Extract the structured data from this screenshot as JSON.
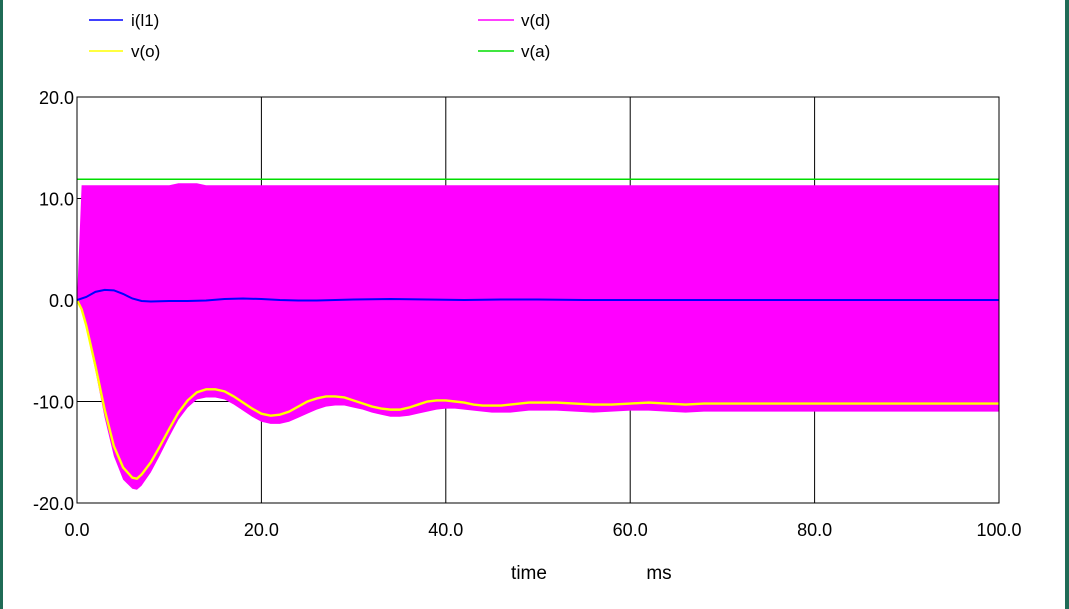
{
  "chart_data": {
    "type": "line",
    "title": "",
    "xlabel": "time",
    "xunit": "ms",
    "ylabel": "",
    "xlim": [
      0,
      100
    ],
    "ylim": [
      -20,
      20
    ],
    "x_ticks": [
      "0.0",
      "20.0",
      "40.0",
      "60.0",
      "80.0",
      "100.0"
    ],
    "y_ticks": [
      "20.0",
      "10.0",
      "0.0",
      "-10.0",
      "-20.0"
    ],
    "grid": true,
    "legend_position": "top",
    "legend": [
      {
        "name": "i(l1)",
        "color": "#0000ff"
      },
      {
        "name": "v(d)",
        "color": "#ff00ff"
      },
      {
        "name": "v(o)",
        "color": "#ffff00"
      },
      {
        "name": "v(a)",
        "color": "#00dd00"
      }
    ],
    "series": [
      {
        "name": "v(d)",
        "color": "#ff00ff",
        "style": "band",
        "x": [
          0,
          0.5,
          1,
          2,
          3,
          4,
          5,
          6,
          6.5,
          7,
          8,
          9,
          10,
          11,
          12,
          13,
          14,
          15,
          16,
          17,
          18,
          19,
          20,
          21,
          22,
          23,
          24,
          25,
          26,
          27,
          28,
          29,
          30,
          31,
          32,
          33,
          34,
          35,
          36,
          37,
          38,
          39,
          40,
          41,
          42,
          43,
          44,
          45,
          46,
          47,
          48,
          49,
          50,
          52,
          54,
          56,
          58,
          60,
          62,
          64,
          66,
          68,
          70,
          72,
          74,
          76,
          78,
          80,
          84,
          88,
          92,
          96,
          100
        ],
        "upper": [
          0,
          11.3,
          11.3,
          11.3,
          11.3,
          11.3,
          11.3,
          11.3,
          11.3,
          11.3,
          11.3,
          11.3,
          11.3,
          11.5,
          11.5,
          11.5,
          11.3,
          11.3,
          11.3,
          11.3,
          11.3,
          11.3,
          11.3,
          11.3,
          11.3,
          11.3,
          11.3,
          11.3,
          11.3,
          11.3,
          11.3,
          11.3,
          11.3,
          11.3,
          11.3,
          11.3,
          11.3,
          11.3,
          11.3,
          11.3,
          11.3,
          11.3,
          11.3,
          11.3,
          11.3,
          11.3,
          11.3,
          11.3,
          11.3,
          11.3,
          11.3,
          11.3,
          11.3,
          11.3,
          11.3,
          11.3,
          11.3,
          11.3,
          11.3,
          11.3,
          11.3,
          11.3,
          11.3,
          11.3,
          11.3,
          11.3,
          11.3,
          11.3,
          11.3,
          11.3,
          11.3,
          11.3,
          11.3
        ],
        "lower": [
          0,
          -1.0,
          -2.8,
          -7.0,
          -11.6,
          -15.4,
          -17.7,
          -18.6,
          -18.7,
          -18.3,
          -17.0,
          -15.3,
          -13.5,
          -11.8,
          -10.6,
          -9.8,
          -9.6,
          -9.6,
          -9.8,
          -10.3,
          -10.9,
          -11.5,
          -12.0,
          -12.2,
          -12.2,
          -12.0,
          -11.6,
          -11.2,
          -10.8,
          -10.5,
          -10.4,
          -10.4,
          -10.6,
          -10.8,
          -11.1,
          -11.3,
          -11.5,
          -11.5,
          -11.4,
          -11.2,
          -11.0,
          -10.8,
          -10.7,
          -10.7,
          -10.8,
          -10.9,
          -11.0,
          -11.1,
          -11.1,
          -11.1,
          -11.0,
          -10.9,
          -10.9,
          -10.9,
          -11.0,
          -11.1,
          -11.0,
          -10.9,
          -10.9,
          -11.0,
          -11.1,
          -11.0,
          -11.0,
          -11.0,
          -11.0,
          -11.0,
          -11.0,
          -11.0,
          -11.0,
          -11.0,
          -11.0,
          -11.0,
          -11.0
        ]
      },
      {
        "name": "v(o)",
        "color": "#ffff00",
        "x": [
          0,
          0.5,
          1,
          2,
          3,
          4,
          5,
          6,
          6.5,
          7,
          8,
          9,
          10,
          11,
          12,
          13,
          14,
          15,
          16,
          17,
          18,
          19,
          20,
          21,
          22,
          23,
          24,
          25,
          26,
          27,
          28,
          29,
          30,
          31,
          32,
          33,
          34,
          35,
          36,
          37,
          38,
          39,
          40,
          41,
          42,
          43,
          44,
          45,
          46,
          47,
          48,
          49,
          50,
          52,
          54,
          56,
          58,
          60,
          62,
          64,
          66,
          68,
          70,
          72,
          74,
          76,
          78,
          80,
          84,
          88,
          92,
          96,
          100
        ],
        "y": [
          0,
          -0.9,
          -2.5,
          -6.5,
          -10.8,
          -14.4,
          -16.5,
          -17.5,
          -17.6,
          -17.2,
          -16.0,
          -14.4,
          -12.7,
          -11.1,
          -9.9,
          -9.1,
          -8.8,
          -8.8,
          -9.0,
          -9.5,
          -10.1,
          -10.7,
          -11.2,
          -11.4,
          -11.3,
          -11.0,
          -10.5,
          -10.0,
          -9.7,
          -9.5,
          -9.5,
          -9.6,
          -9.9,
          -10.2,
          -10.5,
          -10.7,
          -10.8,
          -10.8,
          -10.6,
          -10.3,
          -10.0,
          -9.9,
          -9.9,
          -10.0,
          -10.1,
          -10.3,
          -10.4,
          -10.4,
          -10.4,
          -10.3,
          -10.2,
          -10.1,
          -10.1,
          -10.1,
          -10.2,
          -10.3,
          -10.3,
          -10.2,
          -10.1,
          -10.2,
          -10.3,
          -10.2,
          -10.2,
          -10.2,
          -10.2,
          -10.2,
          -10.2,
          -10.2,
          -10.2,
          -10.2,
          -10.2,
          -10.2,
          -10.2
        ]
      },
      {
        "name": "i(l1)",
        "color": "#0000ff",
        "x": [
          0,
          1,
          2,
          3,
          4,
          5,
          6,
          7,
          8,
          10,
          12,
          14,
          16,
          18,
          20,
          22,
          24,
          26,
          28,
          30,
          34,
          38,
          42,
          46,
          50,
          55,
          60,
          70,
          80,
          90,
          100
        ],
        "y": [
          0,
          0.3,
          0.8,
          1.0,
          0.95,
          0.6,
          0.15,
          -0.1,
          -0.15,
          -0.1,
          -0.1,
          -0.05,
          0.1,
          0.15,
          0.1,
          0.0,
          -0.05,
          -0.05,
          0.0,
          0.05,
          0.1,
          0.05,
          0.0,
          0.05,
          0.05,
          0.0,
          0.0,
          0.0,
          0.0,
          0.0,
          0.0
        ]
      },
      {
        "name": "v(a)",
        "color": "#00dd00",
        "x": [
          0,
          100
        ],
        "y": [
          11.9,
          11.9
        ]
      }
    ]
  }
}
